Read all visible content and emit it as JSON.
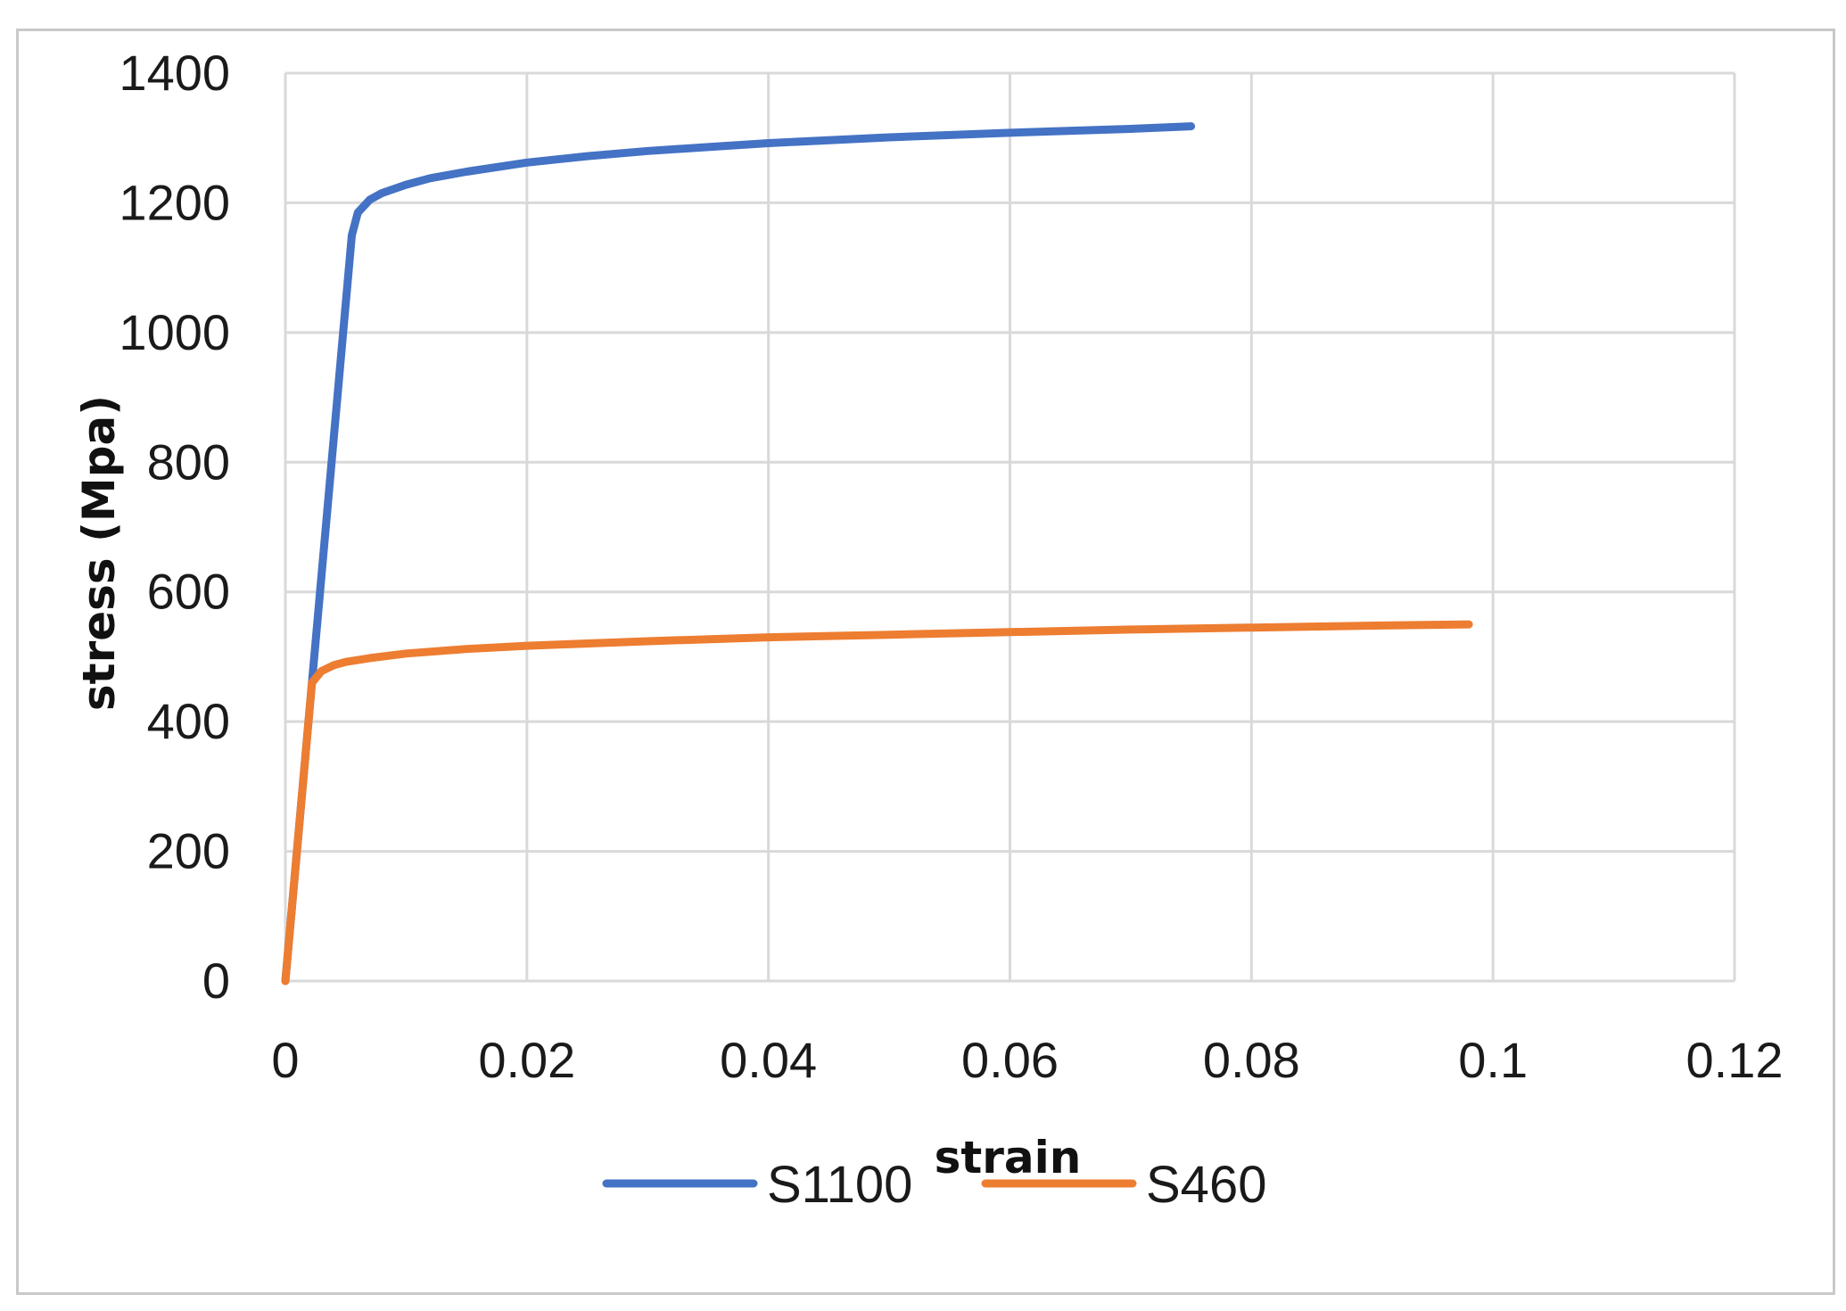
{
  "chart_data": {
    "type": "line",
    "xlabel": "strain",
    "ylabel": "stress (Mpa)",
    "xlim": [
      0,
      0.12
    ],
    "ylim": [
      0,
      1400
    ],
    "x_ticks": [
      "0",
      "0.02",
      "0.04",
      "0.06",
      "0.08",
      "0.1",
      "0.12"
    ],
    "y_ticks": [
      "0",
      "200",
      "400",
      "600",
      "800",
      "1000",
      "1200",
      "1400"
    ],
    "grid": true,
    "legend_position": "bottom",
    "series": [
      {
        "name": "S1100",
        "color": "#4472C4",
        "points": [
          [
            0,
            0
          ],
          [
            0.0055,
            1150
          ],
          [
            0.006,
            1185
          ],
          [
            0.007,
            1205
          ],
          [
            0.008,
            1215
          ],
          [
            0.01,
            1228
          ],
          [
            0.012,
            1238
          ],
          [
            0.015,
            1248
          ],
          [
            0.02,
            1262
          ],
          [
            0.025,
            1272
          ],
          [
            0.03,
            1280
          ],
          [
            0.035,
            1286
          ],
          [
            0.04,
            1292
          ],
          [
            0.05,
            1301
          ],
          [
            0.06,
            1308
          ],
          [
            0.07,
            1314
          ],
          [
            0.075,
            1318
          ]
        ]
      },
      {
        "name": "S460",
        "color": "#ED7D31",
        "points": [
          [
            0,
            0
          ],
          [
            0.0022,
            460
          ],
          [
            0.003,
            478
          ],
          [
            0.004,
            487
          ],
          [
            0.005,
            492
          ],
          [
            0.007,
            498
          ],
          [
            0.01,
            505
          ],
          [
            0.015,
            512
          ],
          [
            0.02,
            517
          ],
          [
            0.03,
            524
          ],
          [
            0.04,
            530
          ],
          [
            0.05,
            534
          ],
          [
            0.06,
            538
          ],
          [
            0.07,
            542
          ],
          [
            0.08,
            545
          ],
          [
            0.09,
            548
          ],
          [
            0.098,
            550
          ]
        ]
      }
    ]
  }
}
